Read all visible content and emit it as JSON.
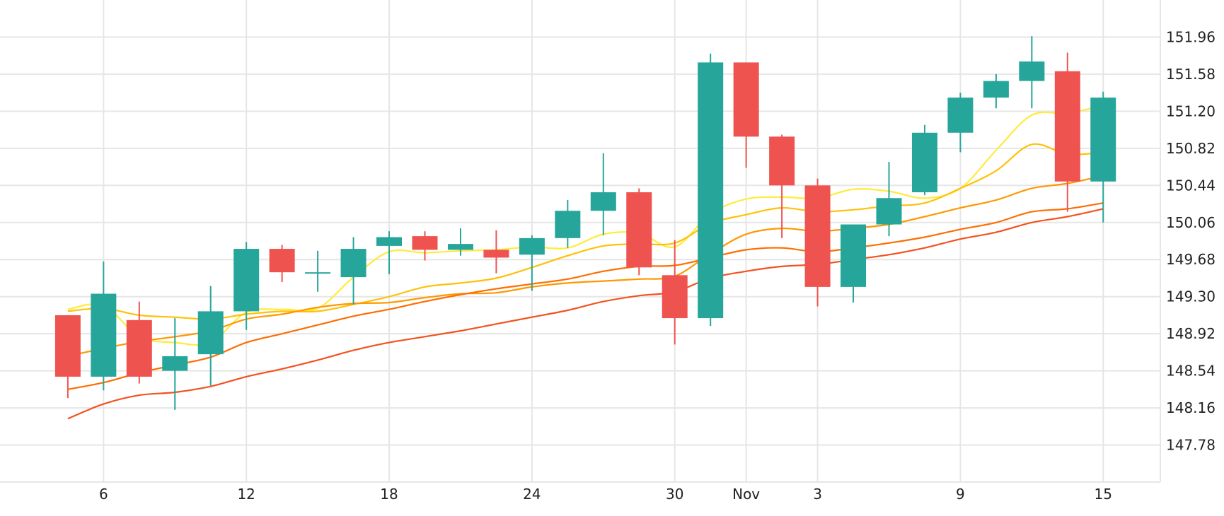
{
  "chart_data": {
    "type": "candlestick",
    "x_tick_labels": [
      "6",
      "12",
      "18",
      "24",
      "30",
      "Nov",
      "3",
      "9",
      "15"
    ],
    "x_tick_positions": [
      1,
      5,
      9,
      13,
      17,
      19,
      21,
      25,
      29
    ],
    "y_tick_labels": [
      "151.96",
      "151.58",
      "151.20",
      "150.82",
      "150.44",
      "150.06",
      "149.68",
      "149.30",
      "148.92",
      "148.54",
      "148.16",
      "147.78"
    ],
    "y_range": [
      147.4,
      152.34
    ],
    "x_range": [
      -1.9,
      30.6
    ],
    "grid": true,
    "colors": {
      "up": "#26a69a",
      "down": "#ef5350"
    },
    "candles": [
      {
        "o": 149.11,
        "h": 149.11,
        "l": 148.26,
        "c": 148.48
      },
      {
        "o": 148.48,
        "h": 149.66,
        "l": 148.34,
        "c": 149.33
      },
      {
        "o": 149.06,
        "h": 149.25,
        "l": 148.41,
        "c": 148.48
      },
      {
        "o": 148.54,
        "h": 149.08,
        "l": 148.14,
        "c": 148.69
      },
      {
        "o": 148.71,
        "h": 149.41,
        "l": 148.39,
        "c": 149.15
      },
      {
        "o": 149.15,
        "h": 149.86,
        "l": 148.96,
        "c": 149.79
      },
      {
        "o": 149.79,
        "h": 149.83,
        "l": 149.45,
        "c": 149.55
      },
      {
        "o": 149.55,
        "h": 149.77,
        "l": 149.35,
        "c": 149.55
      },
      {
        "o": 149.5,
        "h": 149.91,
        "l": 149.22,
        "c": 149.79
      },
      {
        "o": 149.82,
        "h": 149.97,
        "l": 149.53,
        "c": 149.91
      },
      {
        "o": 149.92,
        "h": 149.97,
        "l": 149.67,
        "c": 149.78
      },
      {
        "o": 149.78,
        "h": 150.0,
        "l": 149.72,
        "c": 149.84
      },
      {
        "o": 149.78,
        "h": 149.98,
        "l": 149.54,
        "c": 149.7
      },
      {
        "o": 149.73,
        "h": 149.93,
        "l": 149.36,
        "c": 149.9
      },
      {
        "o": 149.9,
        "h": 150.29,
        "l": 149.8,
        "c": 150.18
      },
      {
        "o": 150.18,
        "h": 150.77,
        "l": 149.93,
        "c": 150.37
      },
      {
        "o": 150.37,
        "h": 150.41,
        "l": 149.52,
        "c": 149.6
      },
      {
        "o": 149.52,
        "h": 149.88,
        "l": 148.81,
        "c": 149.08
      },
      {
        "o": 149.08,
        "h": 151.79,
        "l": 149.0,
        "c": 151.7
      },
      {
        "o": 151.7,
        "h": 151.7,
        "l": 150.62,
        "c": 150.94
      },
      {
        "o": 150.94,
        "h": 150.96,
        "l": 149.9,
        "c": 150.44
      },
      {
        "o": 150.44,
        "h": 150.51,
        "l": 149.2,
        "c": 149.4
      },
      {
        "o": 149.4,
        "h": 150.04,
        "l": 149.24,
        "c": 150.04
      },
      {
        "o": 150.04,
        "h": 150.68,
        "l": 149.92,
        "c": 150.31
      },
      {
        "o": 150.37,
        "h": 151.06,
        "l": 150.34,
        "c": 150.98
      },
      {
        "o": 150.98,
        "h": 151.39,
        "l": 150.78,
        "c": 151.34
      },
      {
        "o": 151.34,
        "h": 151.58,
        "l": 151.23,
        "c": 151.51
      },
      {
        "o": 151.51,
        "h": 151.97,
        "l": 151.23,
        "c": 151.71
      },
      {
        "o": 151.61,
        "h": 151.8,
        "l": 150.17,
        "c": 150.48
      },
      {
        "o": 150.48,
        "h": 151.4,
        "l": 150.06,
        "c": 151.34
      }
    ],
    "ma_lines": [
      {
        "color": "#ffeb3b",
        "values": [
          149.17,
          149.21,
          148.89,
          148.83,
          148.83,
          149.14,
          149.17,
          149.18,
          149.5,
          149.76,
          149.75,
          149.77,
          149.78,
          149.81,
          149.8,
          149.94,
          149.95,
          149.81,
          150.15,
          150.3,
          150.32,
          150.31,
          150.4,
          150.38,
          150.31,
          150.41,
          150.8,
          151.16,
          151.18,
          151.26
        ]
      },
      {
        "color": "#ffc107",
        "values": [
          149.15,
          149.18,
          149.11,
          149.09,
          149.07,
          149.12,
          149.15,
          149.15,
          149.22,
          149.3,
          149.4,
          149.44,
          149.49,
          149.6,
          149.72,
          149.82,
          149.84,
          149.85,
          150.05,
          150.14,
          150.21,
          150.17,
          150.19,
          150.23,
          150.26,
          150.41,
          150.59,
          150.86,
          150.76,
          150.78
        ]
      },
      {
        "color": "#ff9800",
        "values": [
          148.69,
          148.77,
          148.84,
          148.89,
          148.95,
          149.07,
          149.12,
          149.19,
          149.23,
          149.24,
          149.29,
          149.33,
          149.34,
          149.4,
          149.44,
          149.46,
          149.48,
          149.51,
          149.74,
          149.94,
          150.0,
          149.97,
          150.0,
          150.04,
          150.12,
          150.21,
          150.29,
          150.41,
          150.46,
          150.54
        ]
      },
      {
        "color": "#ff6d00",
        "values": [
          148.35,
          148.42,
          148.52,
          148.6,
          148.68,
          148.83,
          148.92,
          149.01,
          149.1,
          149.17,
          149.25,
          149.32,
          149.38,
          149.43,
          149.48,
          149.56,
          149.61,
          149.62,
          149.7,
          149.78,
          149.8,
          149.76,
          149.8,
          149.85,
          149.91,
          149.99,
          150.06,
          150.17,
          150.2,
          150.26
        ]
      },
      {
        "color": "#f4511e",
        "values": [
          148.05,
          148.2,
          148.29,
          148.32,
          148.38,
          148.48,
          148.56,
          148.65,
          148.75,
          148.83,
          148.89,
          148.95,
          149.02,
          149.09,
          149.16,
          149.25,
          149.31,
          149.35,
          149.49,
          149.56,
          149.61,
          149.63,
          149.68,
          149.73,
          149.8,
          149.89,
          149.96,
          150.06,
          150.12,
          150.2
        ]
      }
    ]
  }
}
